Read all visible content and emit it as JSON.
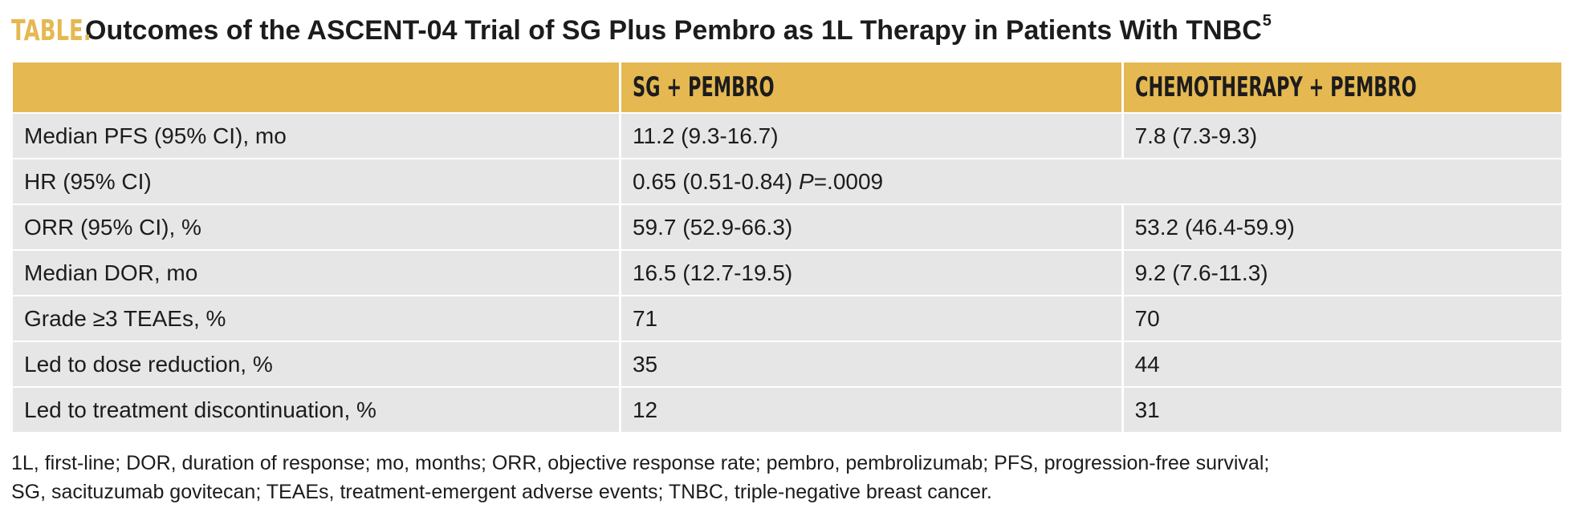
{
  "title": {
    "label": "TABLE.",
    "text": "Outcomes of the ASCENT-04 Trial of SG Plus Pembro as 1L Therapy in Patients With TNBC",
    "superscript": "5"
  },
  "table": {
    "headers": [
      "",
      "SG + PEMBRO",
      "CHEMOTHERAPY + PEMBRO"
    ],
    "rows": [
      {
        "label": "Median PFS (95% CI), mo",
        "sg": "11.2 (9.3-16.7)",
        "chemo": "7.8 (7.3-9.3)"
      },
      {
        "label": "HR (95% CI)",
        "merged": "0.65 (0.51-0.84)",
        "p_label": "P",
        "p_value": "=.0009"
      },
      {
        "label": "ORR (95% CI), %",
        "sg": "59.7 (52.9-66.3)",
        "chemo": "53.2 (46.4-59.9)"
      },
      {
        "label": "Median DOR, mo",
        "sg": "16.5 (12.7-19.5)",
        "chemo": "9.2 (7.6-11.3)"
      },
      {
        "label": "Grade ≥3 TEAEs, %",
        "sg": "71",
        "chemo": "70"
      },
      {
        "label": "Led to dose reduction, %",
        "sg": "35",
        "chemo": "44"
      },
      {
        "label": "Led to treatment discontinuation, %",
        "sg": "12",
        "chemo": "31"
      }
    ]
  },
  "footnote": {
    "line1": "1L, first-line; DOR, duration of response; mo, months; ORR, objective response rate; pembro, pembrolizumab; PFS, progression-free survival;",
    "line2": "SG, sacituzumab govitecan; TEAEs, treatment-emergent adverse events; TNBC, triple-negative breast cancer."
  },
  "colors": {
    "accent": "#e5b852",
    "cell_background": "#e6e6e6",
    "text": "#1c1c1c"
  }
}
